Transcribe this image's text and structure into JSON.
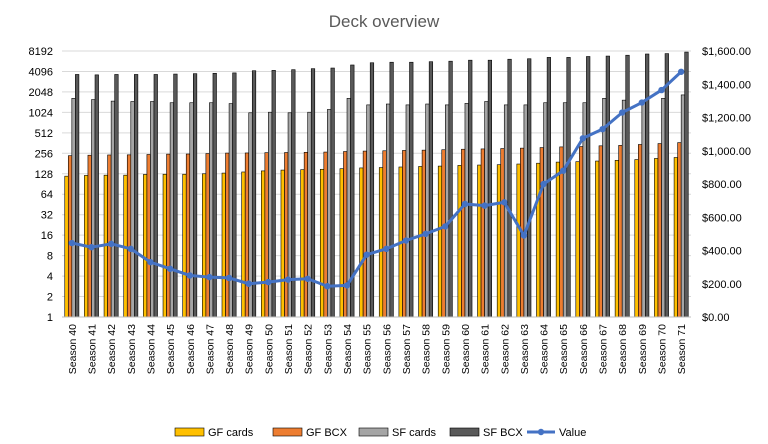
{
  "chart_data": {
    "type": "bar",
    "title": "Deck overview",
    "categories": [
      "Season 40",
      "Season 41",
      "Season 42",
      "Season 43",
      "Season 44",
      "Season 45",
      "Season 46",
      "Season 47",
      "Season 48",
      "Season 49",
      "Season 50",
      "Season 51",
      "Season 52",
      "Season 53",
      "Season 54",
      "Season 55",
      "Season 56",
      "Season 57",
      "Season 58",
      "Season 59",
      "Season 60",
      "Season 61",
      "Season 62",
      "Season 63",
      "Season 64",
      "Season 65",
      "Season 66",
      "Season 67",
      "Season 68",
      "Season 69",
      "Season 70",
      "Season 71"
    ],
    "left_axis": {
      "scale": "log2",
      "range": [
        1,
        8192
      ],
      "ticks": [
        "1",
        "2",
        "4",
        "8",
        "16",
        "32",
        "64",
        "128",
        "256",
        "512",
        "1024",
        "2048",
        "4096",
        "8192"
      ]
    },
    "right_axis": {
      "scale": "linear",
      "range": [
        0,
        1600
      ],
      "ticks": [
        "$0.00",
        "$200.00",
        "$400.00",
        "$600.00",
        "$800.00",
        "$1,000.00",
        "$1,200.00",
        "$1,400.00",
        "$1,600.00"
      ]
    },
    "series": [
      {
        "name": "GF cards",
        "type": "bar",
        "axis": "left",
        "color": "#FFC000",
        "values": [
          118,
          121,
          122,
          122,
          125,
          126,
          126,
          128,
          131,
          136,
          141,
          145,
          147,
          149,
          152,
          156,
          158,
          161,
          164,
          166,
          170,
          172,
          174,
          178,
          183,
          190,
          193,
          197,
          202,
          207,
          215,
          222
        ]
      },
      {
        "name": "GF BCX",
        "type": "bar",
        "axis": "left",
        "color": "#ED7D31",
        "values": [
          236,
          240,
          242,
          243,
          246,
          249,
          250,
          254,
          258,
          259,
          262,
          263,
          265,
          267,
          272,
          276,
          279,
          282,
          285,
          289,
          294,
          297,
          301,
          305,
          311,
          318,
          322,
          330,
          335,
          345,
          356,
          368
        ]
      },
      {
        "name": "SF cards",
        "type": "bar",
        "axis": "left",
        "color": "#A5A5A5",
        "values": [
          1650,
          1580,
          1500,
          1480,
          1480,
          1420,
          1420,
          1420,
          1380,
          1010,
          1030,
          1010,
          1030,
          1130,
          1650,
          1320,
          1360,
          1320,
          1360,
          1320,
          1390,
          1480,
          1320,
          1320,
          1420,
          1420,
          1420,
          1650,
          1550,
          1500,
          1650,
          1850
        ]
      },
      {
        "name": "SF BCX",
        "type": "bar",
        "axis": "left",
        "color": "#595959",
        "values": [
          3700,
          3650,
          3700,
          3700,
          3700,
          3750,
          3800,
          3850,
          3900,
          4200,
          4250,
          4350,
          4500,
          4600,
          5100,
          5500,
          5600,
          5600,
          5700,
          5800,
          6000,
          6000,
          6200,
          6300,
          6600,
          6600,
          6800,
          6900,
          7100,
          7400,
          7500,
          7900
        ]
      },
      {
        "name": "Value",
        "type": "line",
        "axis": "right",
        "color": "#4472C4",
        "values": [
          445,
          420,
          440,
          410,
          330,
          290,
          250,
          240,
          235,
          200,
          210,
          225,
          230,
          185,
          190,
          375,
          410,
          460,
          500,
          545,
          680,
          670,
          690,
          490,
          800,
          880,
          1075,
          1130,
          1230,
          1290,
          1365,
          1475
        ]
      }
    ],
    "legend": "bottom",
    "grid": true
  }
}
